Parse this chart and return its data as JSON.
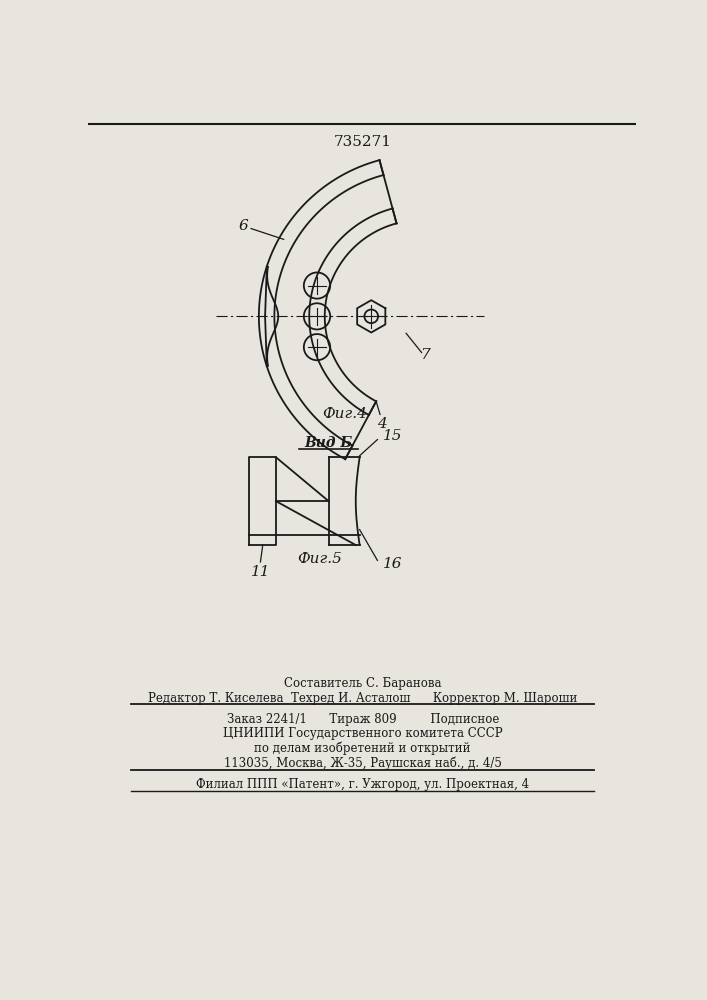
{
  "title": "735271",
  "title_fontsize": 11,
  "bg_color": "#e8e4de",
  "line_color": "#1a1a1a",
  "fig4_caption": "Фиг.4",
  "fig5_caption": "Фиг.5",
  "vid_b_label": "Вид Б",
  "label_6": "6",
  "label_4": "4",
  "label_7": "7",
  "label_11": "11",
  "label_15": "15",
  "label_16": "16",
  "footer_line1": "Составитель С. Баранова",
  "footer_line2": "Редактор Т. Киселева  Техред И. Асталош      Корректор М. Шароши",
  "footer_line3": "Заказ 2241/1      Тираж 809         Подписное",
  "footer_line4": "ЦНИИПИ Государственного комитета СССР",
  "footer_line5": "по делам изобретений и открытий",
  "footer_line6": "113035, Москва, Ж-35, Раушская наб., д. 4/5",
  "footer_line7": "Филиал ППП «Патент», г. Ужгород, ул. Проектная, 4"
}
